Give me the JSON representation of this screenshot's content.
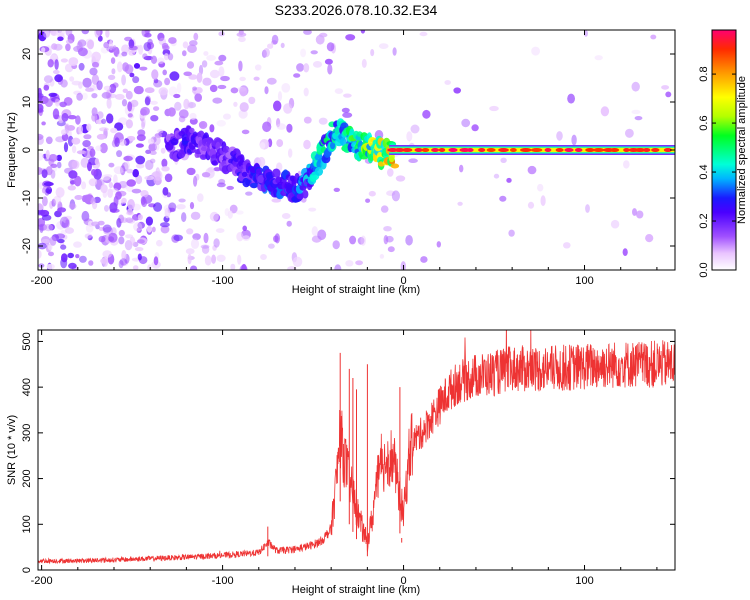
{
  "figure": {
    "title": "S233.2026.078.10.32.E34"
  },
  "chart_data": [
    {
      "type": "heatmap",
      "xlabel": "Height of straight line (km)",
      "ylabel": "Frequency (Hz)",
      "xlim": [
        -202,
        150
      ],
      "ylim": [
        -25,
        25
      ],
      "xticks": [
        -200,
        -100,
        0,
        100
      ],
      "xtick_labels": [
        "-200",
        "-100",
        "0",
        "100"
      ],
      "yticks": [
        -20,
        -10,
        0,
        10,
        20
      ],
      "ytick_labels": [
        "-20",
        "-10",
        "0",
        "10",
        "20"
      ],
      "colorbar": {
        "label": "Normalized spectral amplitude",
        "range": [
          0,
          0.98
        ],
        "ticks": [
          0,
          0.2,
          0.4,
          0.6,
          0.8
        ],
        "tick_labels": [
          "0.0",
          "0.2",
          "0.4",
          "0.6",
          "0.8"
        ]
      },
      "signal_track": {
        "x": [
          -130,
          -120,
          -110,
          -100,
          -90,
          -80,
          -70,
          -60,
          -55,
          -50,
          -45,
          -40,
          -35,
          -30,
          -25,
          -20,
          -15,
          -10,
          -5,
          0,
          20,
          50,
          100,
          150
        ],
        "freq": [
          0,
          2,
          1,
          -1,
          -4,
          -6,
          -7,
          -8,
          -7,
          -4,
          -1,
          3,
          4,
          2,
          1,
          1,
          0,
          -1,
          -1,
          0,
          0,
          0,
          0,
          0
        ],
        "amplitude": [
          0.2,
          0.25,
          0.22,
          0.2,
          0.25,
          0.3,
          0.3,
          0.3,
          0.35,
          0.4,
          0.45,
          0.45,
          0.4,
          0.5,
          0.55,
          0.6,
          0.65,
          0.7,
          0.8,
          0.9,
          0.9,
          0.9,
          0.9,
          0.9
        ]
      },
      "notes": "Noise speckle covers the full frequency range for heights below about -120 km and thins out toward 0 km; a stable line at 0 Hz persists from about -10 km to 150 km."
    },
    {
      "type": "line",
      "xlabel": "Height of straight line (km)",
      "ylabel": "SNR (10 * v/v)",
      "xlim": [
        -202,
        150
      ],
      "ylim": [
        0,
        525
      ],
      "xticks": [
        -200,
        -100,
        0,
        100
      ],
      "xtick_labels": [
        "-200",
        "-100",
        "0",
        "100"
      ],
      "yticks": [
        0,
        100,
        200,
        300,
        400,
        500
      ],
      "ytick_labels": [
        "0",
        "100",
        "200",
        "300",
        "400",
        "500"
      ],
      "series": [
        {
          "name": "SNR",
          "color": "#ee3333",
          "x": [
            -202,
            -180,
            -160,
            -140,
            -120,
            -100,
            -90,
            -80,
            -75,
            -70,
            -60,
            -50,
            -45,
            -40,
            -37,
            -35,
            -33,
            -30,
            -27,
            -25,
            -22,
            -20,
            -17,
            -15,
            -12,
            -10,
            -7,
            -5,
            -3,
            0,
            3,
            5,
            10,
            15,
            20,
            25,
            30,
            40,
            50,
            60,
            80,
            100,
            120,
            150
          ],
          "y": [
            20,
            20,
            22,
            25,
            28,
            32,
            35,
            38,
            60,
            42,
            45,
            55,
            65,
            90,
            200,
            300,
            250,
            200,
            150,
            120,
            80,
            60,
            120,
            190,
            220,
            240,
            250,
            230,
            180,
            120,
            250,
            280,
            300,
            330,
            360,
            390,
            410,
            425,
            430,
            440,
            440,
            445,
            450,
            450
          ],
          "spikes": [
            {
              "x": -75,
              "y": 95
            },
            {
              "x": -35,
              "y": 475
            },
            {
              "x": -30,
              "y": 440
            },
            {
              "x": -28,
              "y": 420
            },
            {
              "x": -26,
              "y": 395
            },
            {
              "x": -20,
              "y": 450
            },
            {
              "x": -2,
              "y": 400
            },
            {
              "x": -1,
              "y": 60
            }
          ],
          "noise_amplitude": "increases with SNR level"
        }
      ]
    }
  ]
}
